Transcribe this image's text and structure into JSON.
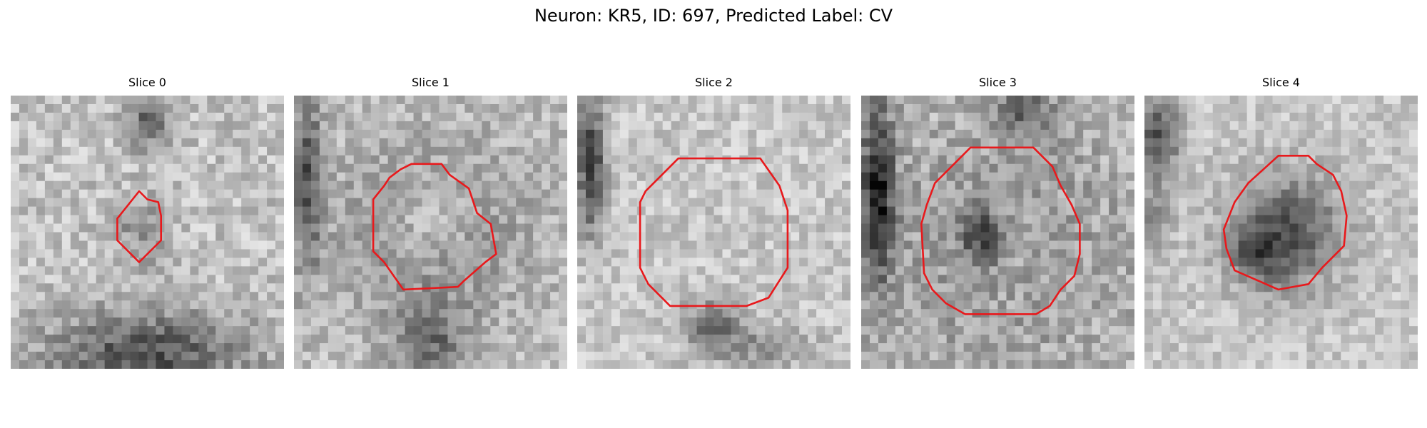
{
  "figure": {
    "title": "Neuron: KR5, ID: 697, Predicted Label: CV"
  },
  "panels": [
    {
      "title": "Slice 0"
    },
    {
      "title": "Slice 1"
    },
    {
      "title": "Slice 2"
    },
    {
      "title": "Slice 3"
    },
    {
      "title": "Slice 4"
    }
  ],
  "colors": {
    "contour": "#e8191c",
    "background": "#ffffff"
  }
}
